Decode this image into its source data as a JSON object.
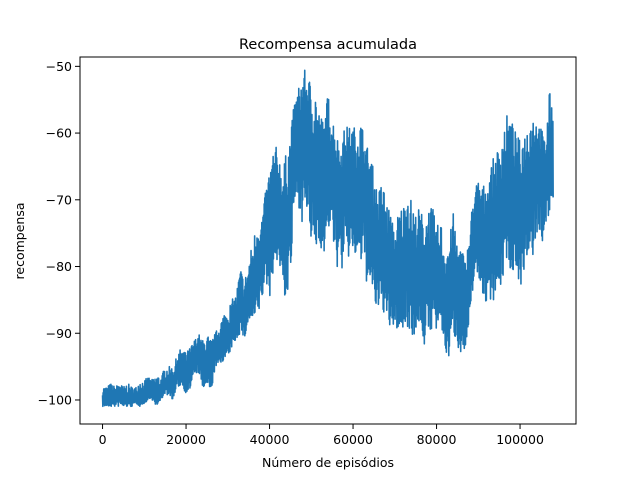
{
  "chart_data": {
    "type": "line",
    "title": "Recompensa acumulada",
    "xlabel": "Número de episódios",
    "ylabel": "recompensa",
    "xlim": [
      -5400,
      113400
    ],
    "ylim": [
      -103.6,
      -48.6
    ],
    "x_ticks": [
      0,
      20000,
      40000,
      60000,
      80000,
      100000
    ],
    "x_tick_labels": [
      "0",
      "20000",
      "40000",
      "60000",
      "80000",
      "100000"
    ],
    "y_ticks": [
      -100,
      -90,
      -80,
      -70,
      -60,
      -50
    ],
    "y_tick_labels": [
      "−100",
      "−90",
      "−80",
      "−70",
      "−60",
      "−50"
    ],
    "grid": false,
    "series": [
      {
        "color": "#1f77b4",
        "x_step": 1000,
        "values": [
          -100,
          -100,
          -100,
          -100,
          -99,
          -100,
          -100,
          -100,
          -100,
          -99.5,
          -100,
          -99,
          -99,
          -100,
          -99,
          -98,
          -97.5,
          -98,
          -96,
          -95.5,
          -96,
          -96,
          -94,
          -93.5,
          -95.5,
          -95,
          -96,
          -93,
          -92.5,
          -91,
          -91,
          -90,
          -89,
          -86,
          -87.5,
          -86,
          -85,
          -81,
          -79,
          -76,
          -75,
          -73,
          -72,
          -76,
          -75,
          -70,
          -63,
          -60,
          -61,
          -62,
          -65,
          -66,
          -67,
          -68,
          -64,
          -66,
          -68,
          -70,
          -66,
          -67,
          -68,
          -69,
          -67,
          -68,
          -73,
          -76,
          -78,
          -76,
          -79,
          -80,
          -82,
          -81,
          -80,
          -78,
          -82,
          -81,
          -80,
          -83,
          -81,
          -80,
          -82,
          -82,
          -85,
          -84,
          -82,
          -85,
          -86,
          -87,
          -82,
          -75,
          -74,
          -76,
          -77,
          -75,
          -74,
          -73,
          -70,
          -68,
          -69,
          -70,
          -72,
          -70,
          -68,
          -66,
          -64,
          -66,
          -68,
          -64
        ],
        "min_values": [
          -101,
          -101,
          -101,
          -101,
          -101,
          -101,
          -101,
          -101,
          -100.5,
          -101,
          -100.5,
          -100,
          -100,
          -101,
          -100,
          -99,
          -99.5,
          -100,
          -98,
          -98,
          -99,
          -98.5,
          -96,
          -96,
          -98.5,
          -98,
          -99,
          -95,
          -95,
          -94,
          -94,
          -92,
          -91,
          -90,
          -91,
          -88,
          -88,
          -88,
          -86,
          -82,
          -85,
          -80,
          -79,
          -82,
          -86,
          -82,
          -71,
          -71,
          -74,
          -72,
          -77,
          -78,
          -76,
          -80,
          -74,
          -76,
          -80,
          -81,
          -80,
          -79,
          -78,
          -80,
          -80,
          -82,
          -84,
          -85,
          -88,
          -86,
          -89,
          -90,
          -89,
          -90,
          -90,
          -89,
          -90,
          -91,
          -88,
          -92,
          -91,
          -89,
          -90,
          -89,
          -93,
          -94,
          -90,
          -92,
          -93,
          -93,
          -89,
          -81,
          -82,
          -84,
          -86,
          -85,
          -85,
          -84,
          -82,
          -78,
          -82,
          -80,
          -83,
          -82,
          -80,
          -79,
          -76,
          -76,
          -77,
          -72
        ],
        "max_values": [
          -98,
          -98,
          -97.5,
          -98,
          -97.5,
          -98,
          -97.5,
          -98,
          -98,
          -97,
          -97,
          -96.5,
          -97,
          -96,
          -96.5,
          -95,
          -95,
          -95,
          -93,
          -92,
          -93,
          -92,
          -91,
          -90,
          -91,
          -90,
          -91,
          -90,
          -88.5,
          -87,
          -86,
          -85,
          -84,
          -80,
          -82,
          -79,
          -76,
          -73,
          -73,
          -69,
          -65,
          -62,
          -62,
          -65,
          -63,
          -60,
          -55,
          -53,
          -51,
          -50,
          -53,
          -53,
          -57,
          -58,
          -54,
          -57,
          -60,
          -62,
          -59,
          -59,
          -59,
          -59,
          -58,
          -62,
          -62,
          -66,
          -69,
          -67,
          -70,
          -72,
          -75,
          -71,
          -71,
          -68,
          -70,
          -72,
          -71,
          -73,
          -71,
          -71,
          -74,
          -73,
          -77,
          -76,
          -72,
          -76,
          -77,
          -79,
          -74,
          -68,
          -67,
          -68,
          -67,
          -65,
          -63,
          -62,
          -59,
          -57,
          -58,
          -60,
          -61,
          -60,
          -58,
          -57,
          -58,
          -59,
          -61,
          -54
        ]
      }
    ]
  }
}
